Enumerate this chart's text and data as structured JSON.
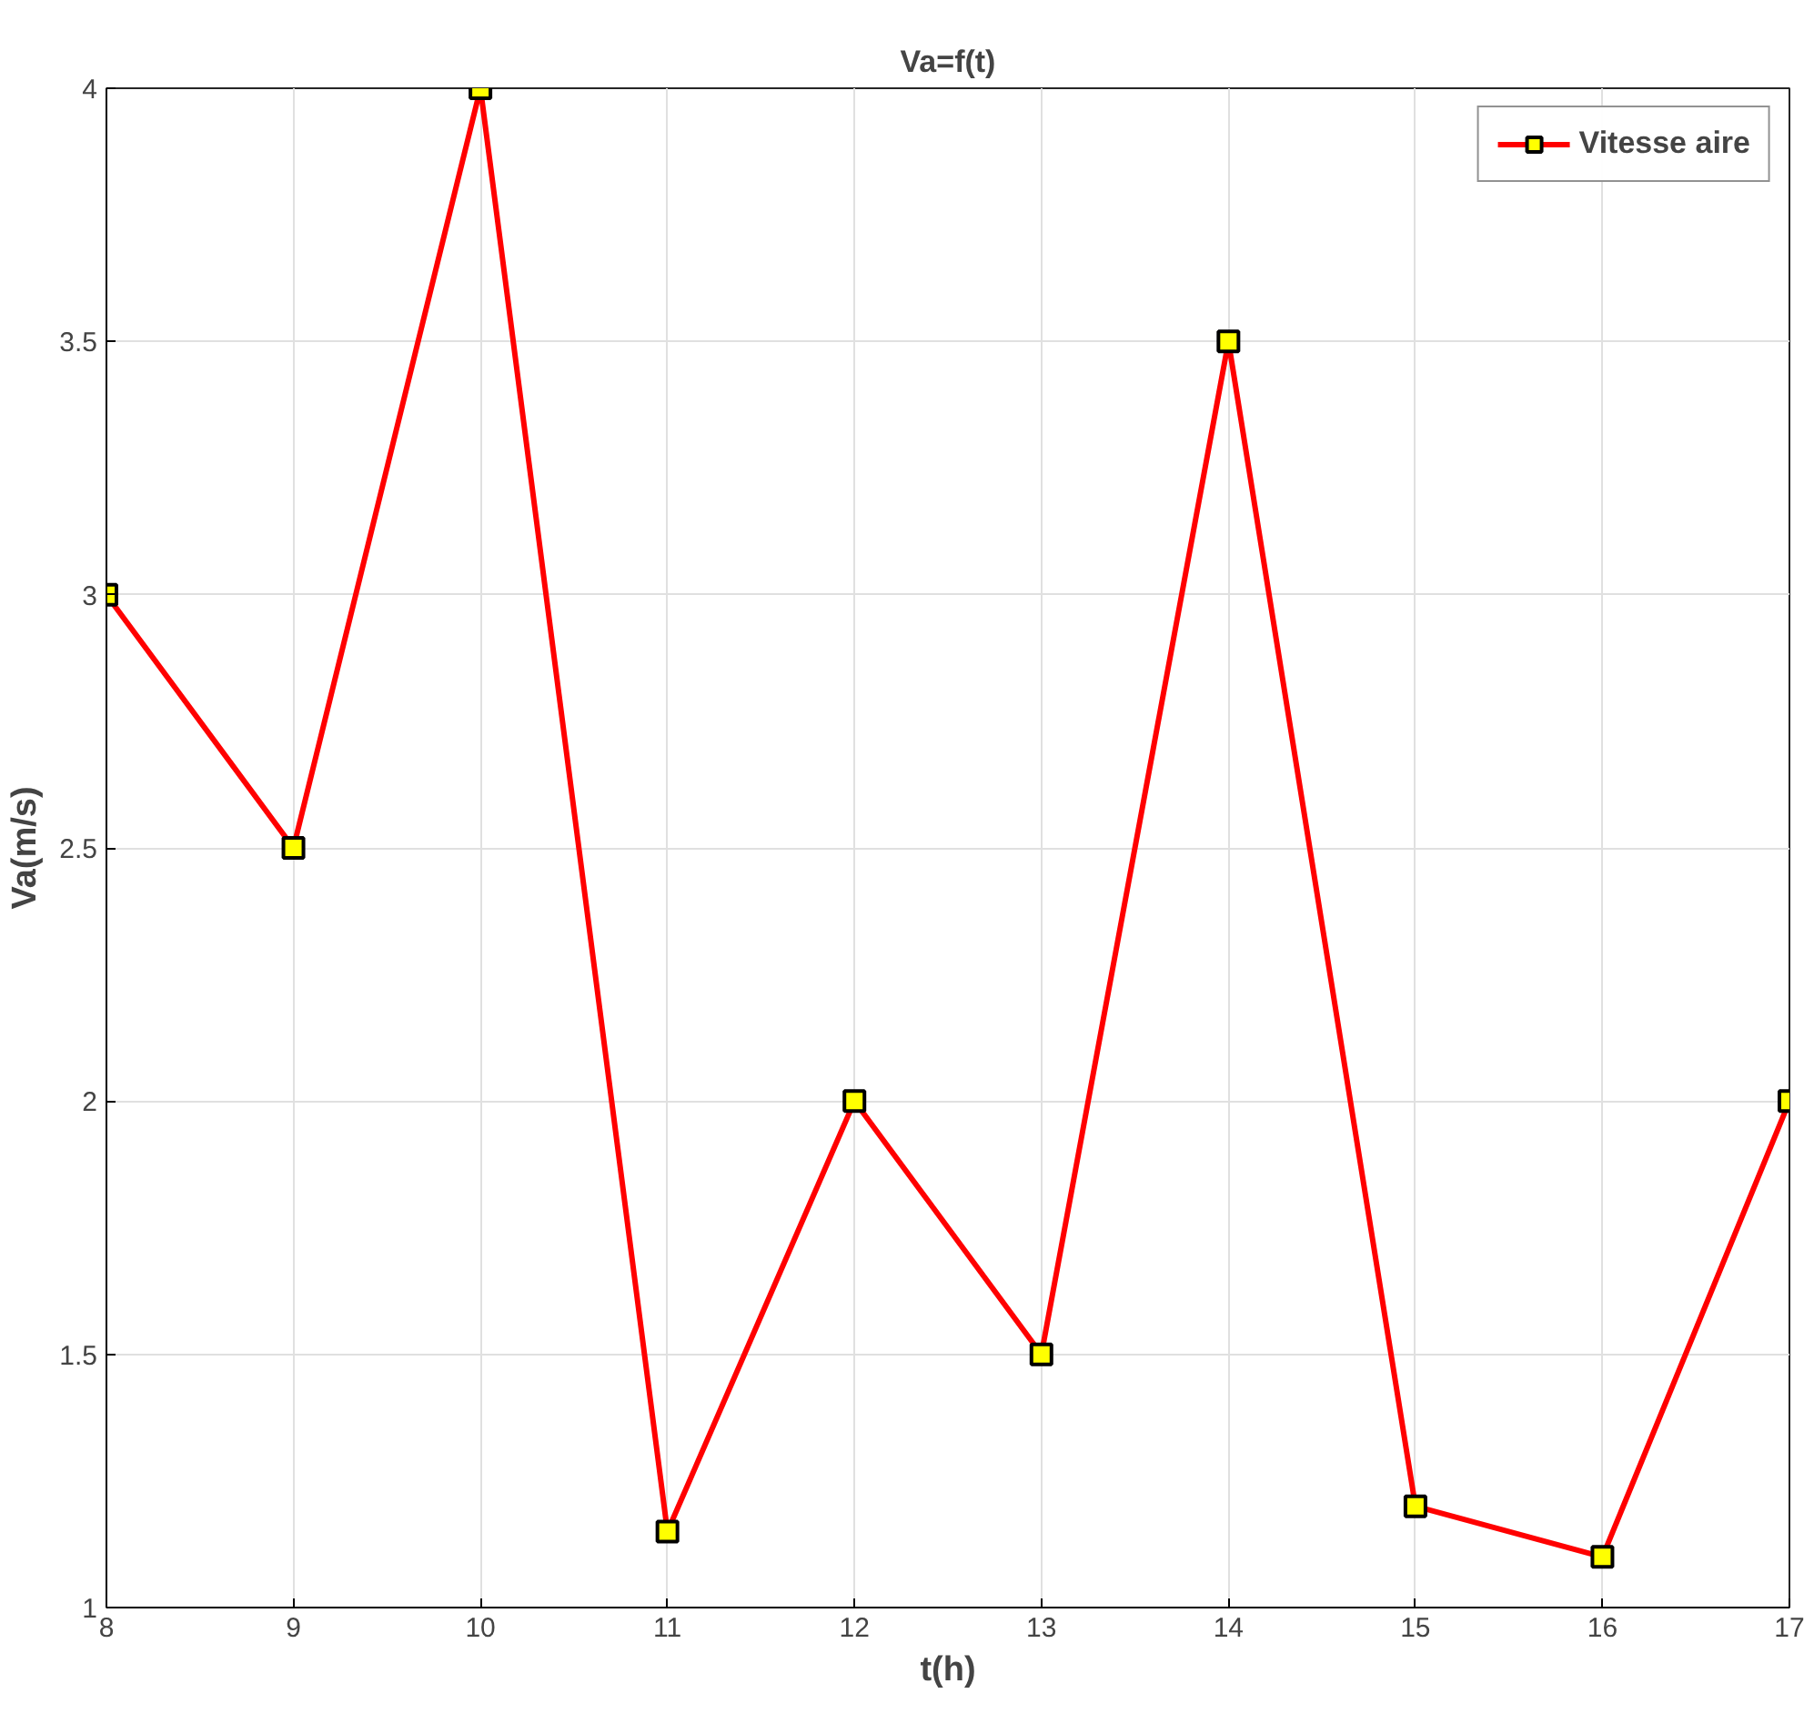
{
  "chart_data": {
    "type": "line",
    "title": "Va=f(t)",
    "xlabel": "t(h)",
    "ylabel": "Va(m/s)",
    "x": [
      8,
      9,
      10,
      11,
      12,
      13,
      14,
      15,
      16,
      17
    ],
    "series": [
      {
        "name": "Vitesse aire",
        "color": "#ff0000",
        "values": [
          3,
          2.5,
          4,
          1.15,
          2,
          1.5,
          3.5,
          1.2,
          1.1,
          2
        ]
      }
    ],
    "xlim": [
      8,
      17
    ],
    "ylim": [
      1,
      4
    ],
    "xticks": [
      8,
      9,
      10,
      11,
      12,
      13,
      14,
      15,
      16,
      17
    ],
    "yticks": [
      1,
      1.5,
      2,
      2.5,
      3,
      3.5,
      4
    ],
    "grid": true,
    "legend": "top right",
    "marker": "square",
    "line_style": "solid"
  }
}
